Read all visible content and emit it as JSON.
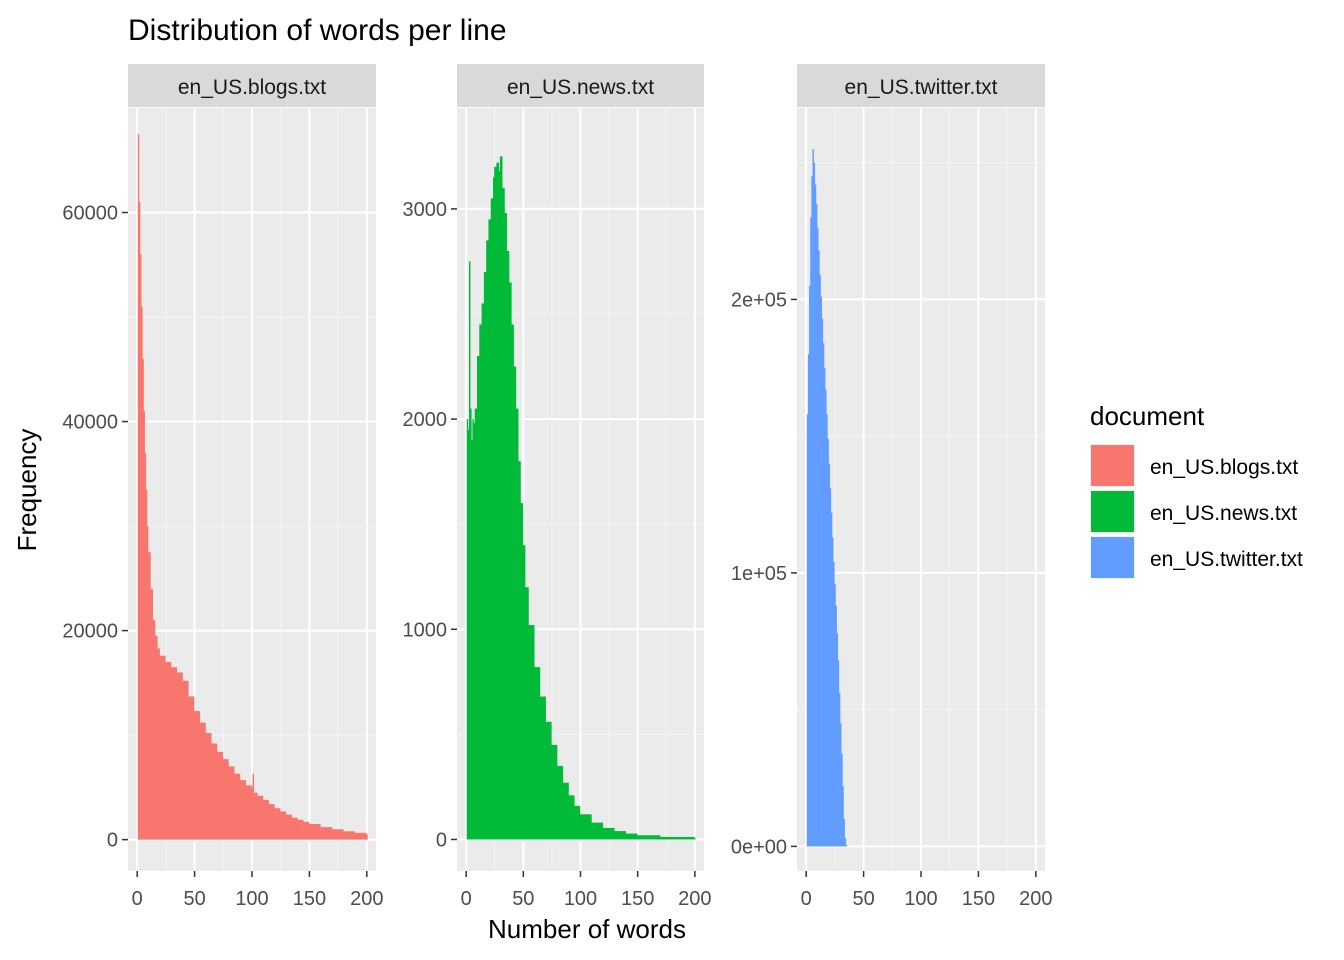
{
  "chart_data": {
    "type": "histogram",
    "title": "Distribution of words per line",
    "xlabel": "Number of words",
    "ylabel": "Frequency",
    "bin_width": 1,
    "legend": {
      "title": "document",
      "position": "right",
      "entries": [
        "en_US.blogs.txt",
        "en_US.news.txt",
        "en_US.twitter.txt"
      ]
    },
    "x_ticks": [
      "0",
      "50",
      "100",
      "150",
      "200"
    ],
    "xlim": [
      -8,
      208
    ],
    "grid": true,
    "panels": [
      {
        "strip": "en_US.blogs.txt",
        "color": "#F8766D",
        "ylim": [
          -3000,
          70000
        ],
        "y_ticks": [
          0,
          20000,
          40000,
          60000
        ],
        "y_tick_labels": [
          "0",
          "20000",
          "40000",
          "60000"
        ],
        "series": [
          {
            "x": 1,
            "y": 67500
          },
          {
            "x": 2,
            "y": 61000
          },
          {
            "x": 3,
            "y": 56000
          },
          {
            "x": 4,
            "y": 51000
          },
          {
            "x": 5,
            "y": 46000
          },
          {
            "x": 6,
            "y": 41000
          },
          {
            "x": 7,
            "y": 37000
          },
          {
            "x": 8,
            "y": 33500
          },
          {
            "x": 9,
            "y": 30000
          },
          {
            "x": 10,
            "y": 27500
          },
          {
            "x": 12,
            "y": 24000
          },
          {
            "x": 14,
            "y": 21000
          },
          {
            "x": 16,
            "y": 19500
          },
          {
            "x": 18,
            "y": 18300
          },
          {
            "x": 20,
            "y": 17600
          },
          {
            "x": 25,
            "y": 17000
          },
          {
            "x": 30,
            "y": 16500
          },
          {
            "x": 35,
            "y": 16000
          },
          {
            "x": 40,
            "y": 15200
          },
          {
            "x": 45,
            "y": 13700
          },
          {
            "x": 50,
            "y": 12300
          },
          {
            "x": 55,
            "y": 11200
          },
          {
            "x": 60,
            "y": 10200
          },
          {
            "x": 65,
            "y": 9200
          },
          {
            "x": 70,
            "y": 8400
          },
          {
            "x": 75,
            "y": 7700
          },
          {
            "x": 80,
            "y": 7000
          },
          {
            "x": 85,
            "y": 6300
          },
          {
            "x": 90,
            "y": 5700
          },
          {
            "x": 95,
            "y": 5200
          },
          {
            "x": 100,
            "y": 5000
          },
          {
            "x": 101,
            "y": 6300
          },
          {
            "x": 102,
            "y": 4500
          },
          {
            "x": 105,
            "y": 4200
          },
          {
            "x": 110,
            "y": 3800
          },
          {
            "x": 115,
            "y": 3400
          },
          {
            "x": 120,
            "y": 3000
          },
          {
            "x": 125,
            "y": 2700
          },
          {
            "x": 130,
            "y": 2400
          },
          {
            "x": 135,
            "y": 2100
          },
          {
            "x": 140,
            "y": 1900
          },
          {
            "x": 145,
            "y": 1700
          },
          {
            "x": 150,
            "y": 1500
          },
          {
            "x": 160,
            "y": 1200
          },
          {
            "x": 170,
            "y": 1000
          },
          {
            "x": 180,
            "y": 800
          },
          {
            "x": 190,
            "y": 650
          },
          {
            "x": 200,
            "y": 500
          }
        ]
      },
      {
        "strip": "en_US.news.txt",
        "color": "#00BA38",
        "ylim": [
          -150,
          3480
        ],
        "y_ticks": [
          0,
          1000,
          2000,
          3000
        ],
        "y_tick_labels": [
          "0",
          "1000",
          "2000",
          "3000"
        ],
        "series": [
          {
            "x": 1,
            "y": 2000
          },
          {
            "x": 2,
            "y": 1950
          },
          {
            "x": 3,
            "y": 2750
          },
          {
            "x": 4,
            "y": 2050
          },
          {
            "x": 5,
            "y": 1900
          },
          {
            "x": 6,
            "y": 2000
          },
          {
            "x": 7,
            "y": 1980
          },
          {
            "x": 8,
            "y": 2050
          },
          {
            "x": 10,
            "y": 2300
          },
          {
            "x": 12,
            "y": 2450
          },
          {
            "x": 14,
            "y": 2550
          },
          {
            "x": 16,
            "y": 2700
          },
          {
            "x": 18,
            "y": 2850
          },
          {
            "x": 20,
            "y": 2950
          },
          {
            "x": 22,
            "y": 3050
          },
          {
            "x": 24,
            "y": 3150
          },
          {
            "x": 25,
            "y": 3200
          },
          {
            "x": 27,
            "y": 3220
          },
          {
            "x": 29,
            "y": 3180
          },
          {
            "x": 30,
            "y": 3250
          },
          {
            "x": 32,
            "y": 3100
          },
          {
            "x": 34,
            "y": 2980
          },
          {
            "x": 36,
            "y": 2800
          },
          {
            "x": 38,
            "y": 2650
          },
          {
            "x": 40,
            "y": 2450
          },
          {
            "x": 42,
            "y": 2250
          },
          {
            "x": 44,
            "y": 2050
          },
          {
            "x": 46,
            "y": 1800
          },
          {
            "x": 48,
            "y": 1600
          },
          {
            "x": 50,
            "y": 1400
          },
          {
            "x": 52,
            "y": 1200
          },
          {
            "x": 55,
            "y": 1020
          },
          {
            "x": 60,
            "y": 820
          },
          {
            "x": 65,
            "y": 680
          },
          {
            "x": 70,
            "y": 560
          },
          {
            "x": 75,
            "y": 450
          },
          {
            "x": 80,
            "y": 350
          },
          {
            "x": 85,
            "y": 270
          },
          {
            "x": 90,
            "y": 210
          },
          {
            "x": 95,
            "y": 160
          },
          {
            "x": 100,
            "y": 120
          },
          {
            "x": 110,
            "y": 80
          },
          {
            "x": 120,
            "y": 55
          },
          {
            "x": 130,
            "y": 40
          },
          {
            "x": 140,
            "y": 28
          },
          {
            "x": 150,
            "y": 20
          },
          {
            "x": 170,
            "y": 12
          },
          {
            "x": 200,
            "y": 5
          }
        ]
      },
      {
        "strip": "en_US.twitter.txt",
        "color": "#619CFF",
        "ylim": [
          -9000,
          270000
        ],
        "y_ticks": [
          0,
          100000,
          200000
        ],
        "y_tick_labels": [
          "0e+00",
          "1e+05",
          "2e+05"
        ],
        "series": [
          {
            "x": 1,
            "y": 158000
          },
          {
            "x": 2,
            "y": 180000
          },
          {
            "x": 3,
            "y": 205000
          },
          {
            "x": 4,
            "y": 230000
          },
          {
            "x": 5,
            "y": 245000
          },
          {
            "x": 6,
            "y": 255000
          },
          {
            "x": 7,
            "y": 250000
          },
          {
            "x": 8,
            "y": 242000
          },
          {
            "x": 9,
            "y": 235000
          },
          {
            "x": 10,
            "y": 226000
          },
          {
            "x": 11,
            "y": 218000
          },
          {
            "x": 12,
            "y": 209000
          },
          {
            "x": 13,
            "y": 201000
          },
          {
            "x": 14,
            "y": 193000
          },
          {
            "x": 15,
            "y": 184000
          },
          {
            "x": 16,
            "y": 175000
          },
          {
            "x": 17,
            "y": 167000
          },
          {
            "x": 18,
            "y": 158000
          },
          {
            "x": 19,
            "y": 149000
          },
          {
            "x": 20,
            "y": 140000
          },
          {
            "x": 21,
            "y": 131000
          },
          {
            "x": 22,
            "y": 122000
          },
          {
            "x": 23,
            "y": 113000
          },
          {
            "x": 24,
            "y": 104000
          },
          {
            "x": 25,
            "y": 96000
          },
          {
            "x": 26,
            "y": 88000
          },
          {
            "x": 27,
            "y": 78000
          },
          {
            "x": 28,
            "y": 68000
          },
          {
            "x": 29,
            "y": 56000
          },
          {
            "x": 30,
            "y": 45000
          },
          {
            "x": 31,
            "y": 34000
          },
          {
            "x": 32,
            "y": 22000
          },
          {
            "x": 33,
            "y": 10000
          },
          {
            "x": 34,
            "y": 3000
          },
          {
            "x": 35,
            "y": 500
          }
        ]
      }
    ]
  }
}
